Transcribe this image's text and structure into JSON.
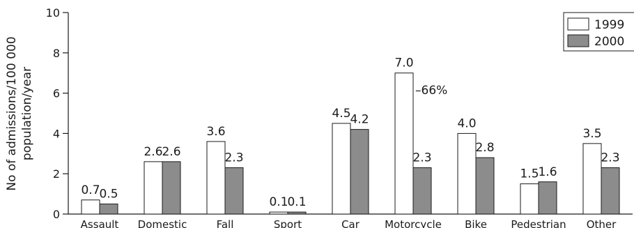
{
  "chart_data": {
    "type": "bar",
    "categories": [
      "Assault",
      "Domestic",
      "Fall",
      "Sport",
      "Car",
      "Motorcycle",
      "Bike",
      "Pedestrian",
      "Other"
    ],
    "series": [
      {
        "name": "1999",
        "values": [
          0.7,
          2.6,
          3.6,
          0.1,
          4.5,
          7.0,
          4.0,
          1.5,
          3.5
        ],
        "labels": [
          "0.7",
          "2.6",
          "3.6",
          "0.1",
          "4.5",
          "7.0",
          "4.0",
          "1.5",
          "3.5"
        ],
        "color": "#ffffff"
      },
      {
        "name": "2000",
        "values": [
          0.5,
          2.6,
          2.3,
          0.1,
          4.2,
          2.3,
          2.8,
          1.6,
          2.3
        ],
        "labels": [
          "0.5",
          "2.6",
          "2.3",
          "0.1",
          "4.2",
          "2.3",
          "2.8",
          "1.6",
          "2.3"
        ],
        "color": "#8c8c8c"
      }
    ],
    "title": "",
    "xlabel": "",
    "ylabel": [
      "No of admissions/100 000",
      "population/year"
    ],
    "ylim": [
      0,
      10
    ],
    "yticks": [
      "0",
      "2",
      "4",
      "6",
      "8",
      "10"
    ],
    "grid": false,
    "legend_position": "top-right",
    "annotations": [
      {
        "text": "–66%",
        "category": "Motorcycle"
      }
    ]
  }
}
